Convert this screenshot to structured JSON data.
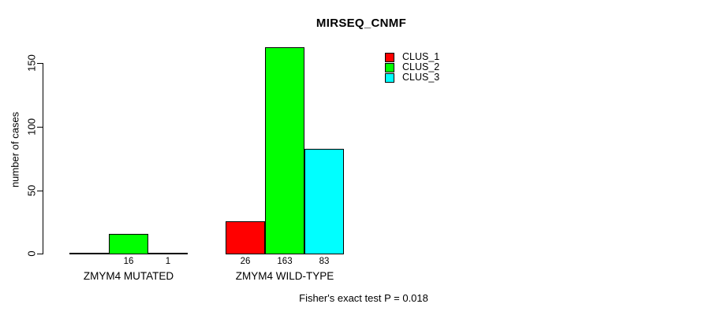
{
  "chart_data": {
    "type": "bar",
    "grouped": true,
    "title": "MIRSEQ_CNMF",
    "xlabel": "",
    "ylabel": "number of cases",
    "yticks": [
      0,
      50,
      100,
      150
    ],
    "ylim": [
      0,
      170
    ],
    "grid": false,
    "legend_position": "top-right",
    "categories": [
      "ZMYM4 MUTATED",
      "ZMYM4 WILD-TYPE"
    ],
    "series": [
      {
        "name": "CLUS_1",
        "color": "#ff0000",
        "values": [
          0,
          26
        ]
      },
      {
        "name": "CLUS_2",
        "color": "#00ff00",
        "values": [
          16,
          163
        ]
      },
      {
        "name": "CLUS_3",
        "color": "#00ffff",
        "values": [
          1,
          83
        ]
      }
    ],
    "bar_value_labels": [
      [
        "",
        "16",
        "1"
      ],
      [
        "26",
        "163",
        "83"
      ]
    ],
    "annotation": "Fisher's exact test P = 0.018"
  }
}
